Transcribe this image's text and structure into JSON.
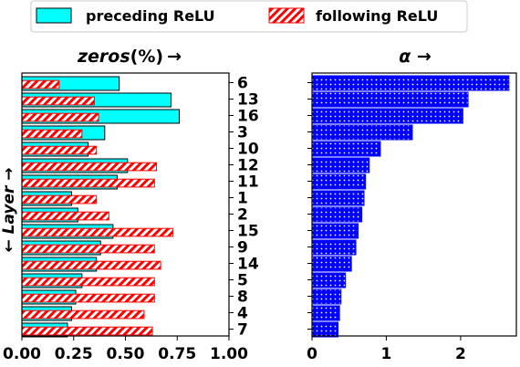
{
  "legend": {
    "preceding_label": "preceding ReLU",
    "following_label": "following ReLU"
  },
  "colors": {
    "preceding": "#00ffff",
    "following_hatch": "#ff0000",
    "alpha_bar": "#0000ff"
  },
  "chart_data": [
    {
      "type": "bar",
      "orientation": "horizontal",
      "title_prefix": "zeros",
      "title_suffix": "(%)",
      "title_arrow": "→",
      "ylabel": "← Layer →",
      "categories": [
        "6",
        "13",
        "16",
        "3",
        "10",
        "12",
        "11",
        "1",
        "2",
        "15",
        "9",
        "14",
        "5",
        "8",
        "4",
        "7"
      ],
      "xlim": [
        0,
        1
      ],
      "xticks": [
        "0.00",
        "0.25",
        "0.50",
        "0.75",
        "1.00"
      ],
      "series": [
        {
          "name": "preceding ReLU",
          "values": [
            0.47,
            0.72,
            0.76,
            0.4,
            0.32,
            0.51,
            0.46,
            0.24,
            0.27,
            0.44,
            0.38,
            0.36,
            0.29,
            0.26,
            0.24,
            0.22
          ]
        },
        {
          "name": "following ReLU",
          "values": [
            0.18,
            0.35,
            0.37,
            0.29,
            0.36,
            0.65,
            0.64,
            0.36,
            0.42,
            0.73,
            0.64,
            0.67,
            0.64,
            0.64,
            0.59,
            0.63
          ]
        }
      ]
    },
    {
      "type": "bar",
      "orientation": "horizontal",
      "title": "α →",
      "categories": [
        "6",
        "13",
        "16",
        "3",
        "10",
        "12",
        "11",
        "1",
        "2",
        "15",
        "9",
        "14",
        "5",
        "8",
        "4",
        "7"
      ],
      "xlim": [
        0,
        2.75
      ],
      "xticks": [
        "0",
        "1",
        "2"
      ],
      "series": [
        {
          "values": [
            2.65,
            2.1,
            2.03,
            1.35,
            0.92,
            0.77,
            0.72,
            0.7,
            0.67,
            0.62,
            0.59,
            0.53,
            0.45,
            0.39,
            0.37,
            0.35
          ]
        }
      ]
    }
  ]
}
